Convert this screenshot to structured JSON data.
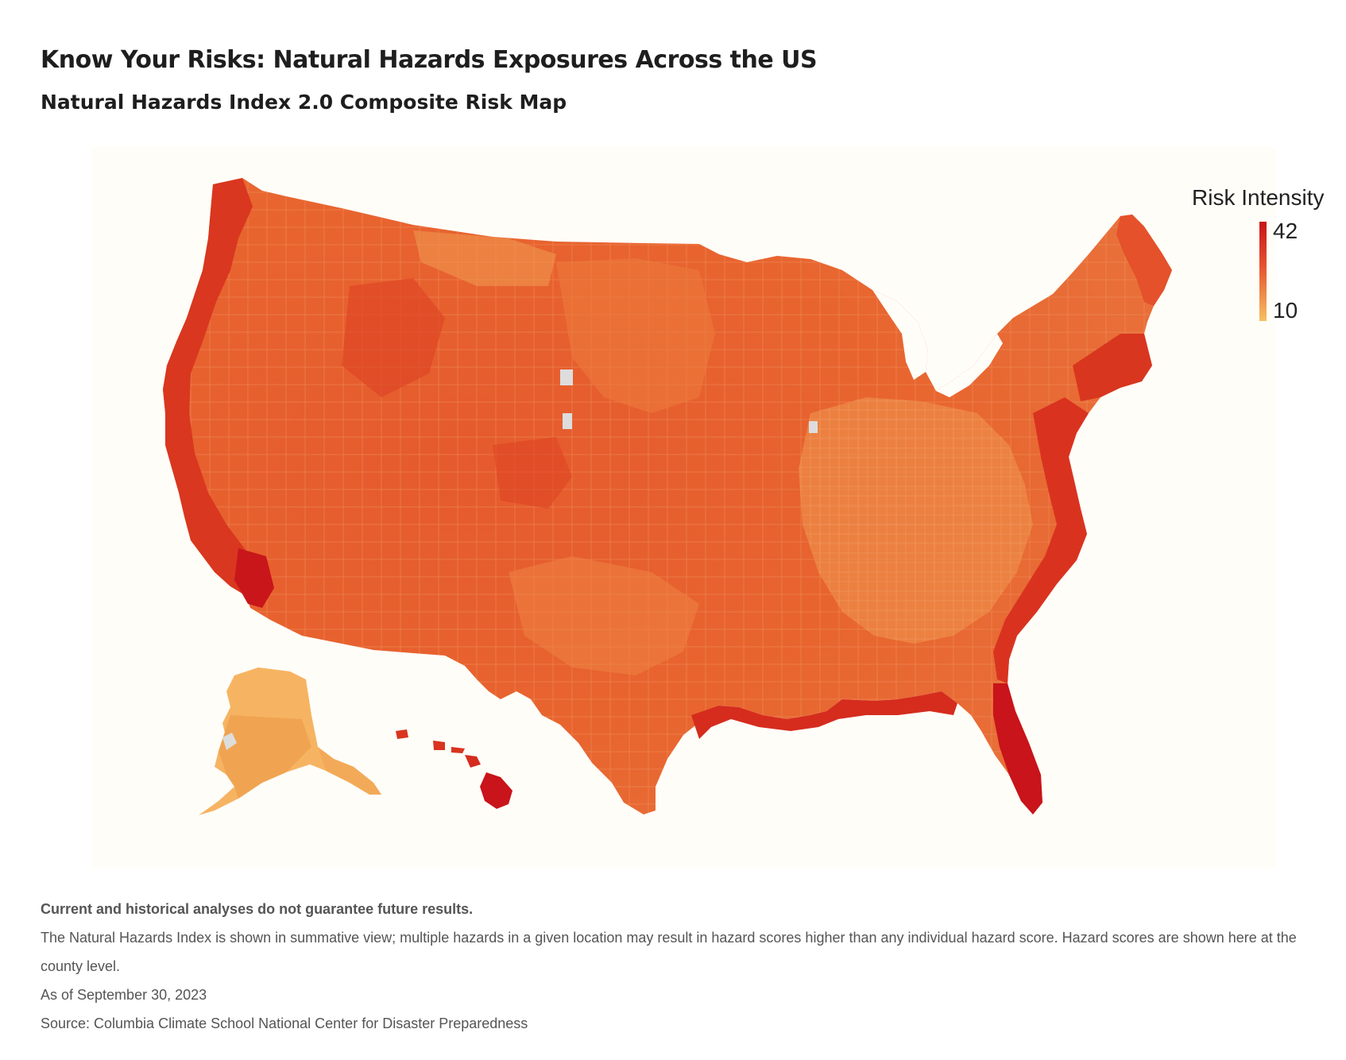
{
  "header": {
    "title": "Know Your Risks: Natural Hazards Exposures Across the US",
    "subtitle": "Natural Hazards Index 2.0 Composite Risk Map"
  },
  "legend": {
    "title": "Risk Intensity",
    "max_label": "42",
    "min_label": "10",
    "max_color": "#c8141a",
    "mid_color": "#e5532f",
    "min_color": "#f6c063"
  },
  "map": {
    "type": "choropleth",
    "geography": "US counties",
    "regions": [
      "Contiguous US",
      "Alaska",
      "Hawaii"
    ],
    "scale": {
      "min": 10,
      "max": 42
    },
    "no_data_color": "#dddddd",
    "panel_color": "#fffdf8"
  },
  "notes": {
    "disclaimer": "Current and historical analyses do not guarantee future results.",
    "description": "The Natural Hazards Index is shown in summative view; multiple hazards in a given location may result in hazard scores higher than any individual hazard score. Hazard scores are shown here at the county level.",
    "date": "As of September 30, 2023",
    "source": "Source: Columbia Climate School National Center for Disaster Preparedness"
  }
}
